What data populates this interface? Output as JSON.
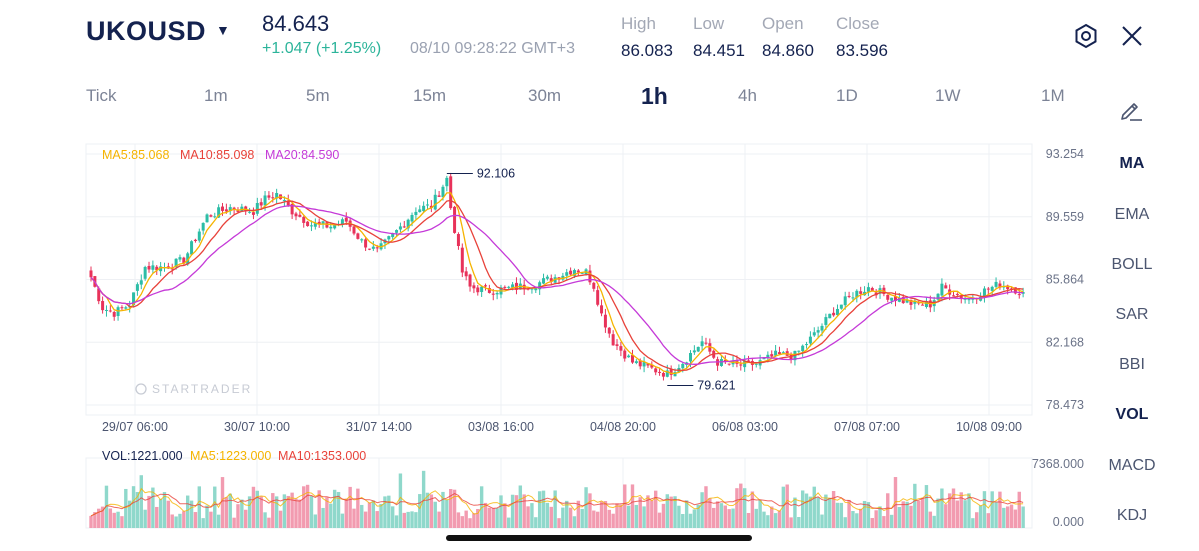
{
  "header": {
    "symbol": "UKOUSD",
    "price": "84.643",
    "change": "+1.047 (+1.25%)",
    "timestamp": "08/10 09:28:22 GMT+3",
    "stats": [
      {
        "label": "High",
        "value": "86.083"
      },
      {
        "label": "Low",
        "value": "84.451"
      },
      {
        "label": "Open",
        "value": "84.860"
      },
      {
        "label": "Close",
        "value": "83.596"
      }
    ]
  },
  "timeframes": [
    "Tick",
    "1m",
    "5m",
    "15m",
    "30m",
    "1h",
    "4h",
    "1D",
    "1W",
    "1M"
  ],
  "active_timeframe": "1h",
  "indicators": [
    "MA",
    "EMA",
    "BOLL",
    "SAR",
    "BBI",
    "VOL",
    "MACD",
    "KDJ"
  ],
  "active_indicators": [
    "MA",
    "VOL"
  ],
  "colors": {
    "up": "#2cbda6",
    "down": "#e8325a",
    "ma5": "#f5b400",
    "ma10": "#e8423a",
    "ma20": "#c53ad8",
    "text_dark": "#14224f"
  },
  "legend": {
    "ma5": "MA5:85.068",
    "ma10": "MA10:85.098",
    "ma20": "MA20:84.590",
    "vol": "VOL:1221.000",
    "vol_ma5": "MA5:1223.000",
    "vol_ma10": "MA10:1353.000"
  },
  "watermark": "STARTRADER",
  "chart_data": {
    "type": "candlestick",
    "y_ticks": [
      "93.254",
      "89.559",
      "85.864",
      "82.168",
      "78.473"
    ],
    "ylim": [
      78.473,
      93.254
    ],
    "x_labels": [
      "29/07 06:00",
      "30/07 10:00",
      "31/07 14:00",
      "03/08 16:00",
      "04/08 20:00",
      "06/08 03:00",
      "07/08 07:00",
      "10/08 09:00"
    ],
    "annotations": {
      "max": "92.106",
      "min": "79.621"
    },
    "volume_ticks": [
      "7368.000",
      "0.000"
    ],
    "volume_ylim": [
      0,
      7368
    ],
    "close_path": [
      [
        0,
        86.0
      ],
      [
        3,
        84.2
      ],
      [
        6,
        83.9
      ],
      [
        10,
        84.4
      ],
      [
        14,
        86.6
      ],
      [
        19,
        86.6
      ],
      [
        24,
        87.0
      ],
      [
        30,
        89.6
      ],
      [
        36,
        90.1
      ],
      [
        42,
        89.9
      ],
      [
        45,
        90.6
      ],
      [
        48,
        90.9
      ],
      [
        52,
        89.9
      ],
      [
        57,
        89.1
      ],
      [
        62,
        89.0
      ],
      [
        66,
        89.3
      ],
      [
        70,
        88.1
      ],
      [
        74,
        87.5
      ],
      [
        79,
        88.7
      ],
      [
        84,
        90.0
      ],
      [
        88,
        90.2
      ],
      [
        92,
        91.8
      ],
      [
        93,
        90.1
      ],
      [
        96,
        86.3
      ],
      [
        98,
        85.4
      ],
      [
        103,
        85.2
      ],
      [
        110,
        85.4
      ],
      [
        115,
        85.6
      ],
      [
        120,
        86.0
      ],
      [
        125,
        86.5
      ],
      [
        128,
        86.3
      ],
      [
        130,
        85.5
      ],
      [
        132,
        83.8
      ],
      [
        135,
        82.2
      ],
      [
        140,
        81.0
      ],
      [
        145,
        80.6
      ],
      [
        149,
        80.3
      ],
      [
        153,
        81.0
      ],
      [
        158,
        82.2
      ],
      [
        162,
        81.0
      ],
      [
        167,
        80.8
      ],
      [
        172,
        80.9
      ],
      [
        177,
        81.4
      ],
      [
        182,
        81.4
      ],
      [
        187,
        82.6
      ],
      [
        192,
        84.0
      ],
      [
        197,
        85.0
      ],
      [
        201,
        85.4
      ],
      [
        205,
        85.0
      ],
      [
        209,
        84.7
      ],
      [
        213,
        84.4
      ],
      [
        217,
        84.4
      ],
      [
        220,
        85.4
      ],
      [
        224,
        85.0
      ],
      [
        227,
        84.7
      ],
      [
        231,
        85.2
      ],
      [
        235,
        85.6
      ],
      [
        239,
        85.3
      ],
      [
        241,
        85.0
      ]
    ]
  }
}
